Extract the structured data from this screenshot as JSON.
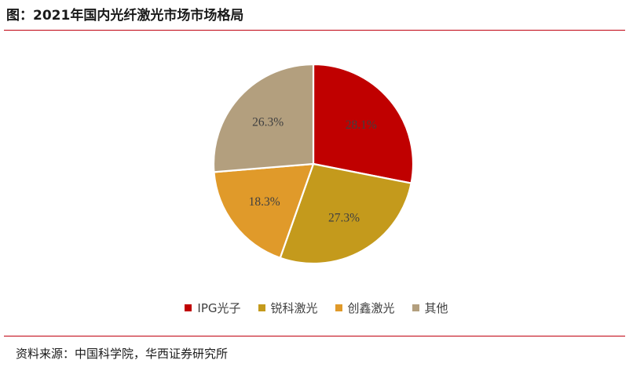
{
  "title": "图：2021年国内光纤激光市场市场格局",
  "source": "资料来源：中国科学院，华西证券研究所",
  "chart_data": {
    "type": "pie",
    "series": [
      {
        "name": "IPG光子",
        "value": 28.1,
        "label": "28.1%",
        "color": "#c00000"
      },
      {
        "name": "锐科激光",
        "value": 27.3,
        "label": "27.3%",
        "color": "#c49a1c"
      },
      {
        "name": "创鑫激光",
        "value": 18.3,
        "label": "18.3%",
        "color": "#e09a2a"
      },
      {
        "name": "其他",
        "value": 26.3,
        "label": "26.3%",
        "color": "#b39f7e"
      }
    ],
    "start_angle_deg": 0,
    "direction": "clockwise",
    "legend_position": "bottom",
    "title": "",
    "xlabel": "",
    "ylabel": ""
  },
  "colors": {
    "rule": "#c0000f",
    "slice_border": "#ffffff",
    "label_text": "#404040"
  }
}
